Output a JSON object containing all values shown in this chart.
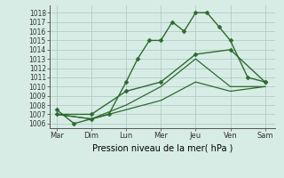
{
  "title": "",
  "xlabel": "Pression niveau de la mer( hPa )",
  "background_color": "#d8ece6",
  "grid_color": "#a8c8c0",
  "line_color": "#2d6a2d",
  "x_labels": [
    "Mar",
    "Dim",
    "Lun",
    "Mer",
    "Jeu",
    "Ven",
    "Sam"
  ],
  "x_ticks": [
    0,
    1,
    2,
    3,
    4,
    5,
    6
  ],
  "ylim": [
    1005.5,
    1018.8
  ],
  "yticks": [
    1006,
    1007,
    1008,
    1009,
    1010,
    1011,
    1012,
    1013,
    1014,
    1015,
    1016,
    1017,
    1018
  ],
  "series": [
    {
      "x": [
        0.0,
        0.5,
        1.0,
        1.5,
        2.0,
        2.33,
        2.67,
        3.0,
        3.33,
        3.67,
        4.0,
        4.33,
        4.67,
        5.0,
        5.5,
        6.0
      ],
      "y": [
        1007.5,
        1006.0,
        1006.5,
        1007.0,
        1010.5,
        1013.0,
        1015.0,
        1015.0,
        1017.0,
        1016.0,
        1018.0,
        1018.0,
        1016.5,
        1015.0,
        1011.0,
        1010.5
      ],
      "marker": "D",
      "markersize": 2.5,
      "linewidth": 1.0
    },
    {
      "x": [
        0.0,
        1.0,
        2.0,
        3.0,
        4.0,
        5.0,
        6.0
      ],
      "y": [
        1007.0,
        1007.0,
        1009.5,
        1010.5,
        1013.5,
        1014.0,
        1010.5
      ],
      "marker": "D",
      "markersize": 2.5,
      "linewidth": 1.0
    },
    {
      "x": [
        0.0,
        1.0,
        2.0,
        3.0,
        4.0,
        5.0,
        6.0
      ],
      "y": [
        1007.0,
        1006.5,
        1008.0,
        1010.0,
        1013.0,
        1010.0,
        1010.0
      ],
      "marker": "",
      "markersize": 0,
      "linewidth": 0.9
    },
    {
      "x": [
        0.0,
        1.0,
        2.0,
        3.0,
        4.0,
        5.0,
        6.0
      ],
      "y": [
        1007.0,
        1006.5,
        1007.5,
        1008.5,
        1010.5,
        1009.5,
        1010.0
      ],
      "marker": "",
      "markersize": 0,
      "linewidth": 0.9
    }
  ]
}
